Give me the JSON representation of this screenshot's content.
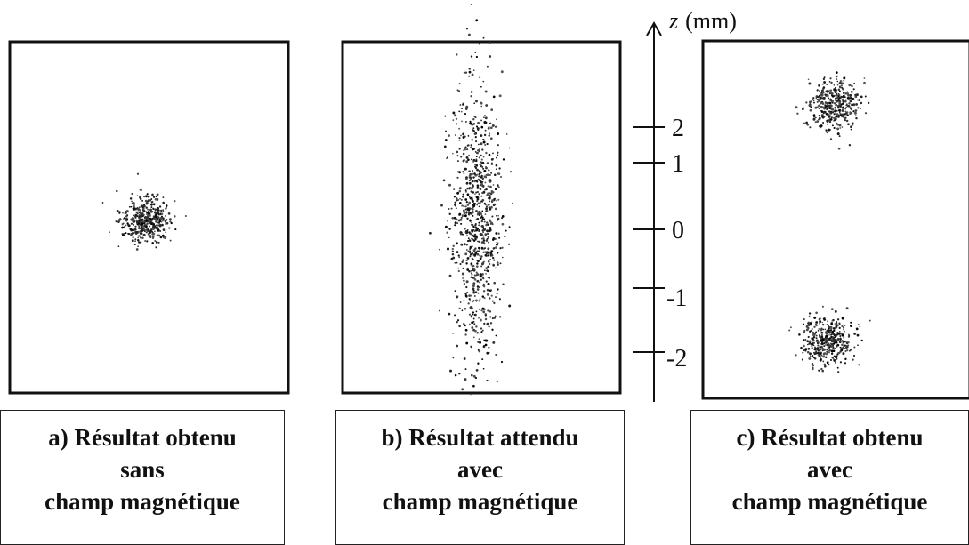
{
  "axis": {
    "variable": "z",
    "unit": "(mm)",
    "ticks": [
      "2",
      "1",
      "0",
      "-1",
      "-2"
    ]
  },
  "panels": [
    {
      "caption_lines": [
        "a) Résultat obtenu",
        "sans",
        "champ magnétique"
      ],
      "clusters": [
        {
          "z_mm": 0.0,
          "spread": "compact"
        }
      ]
    },
    {
      "caption_lines": [
        "b) Résultat attendu",
        "avec",
        "champ magnétique"
      ],
      "clusters": [
        {
          "z_range_mm": [
            -2.3,
            2.5
          ],
          "spread": "vertical-elongated"
        }
      ]
    },
    {
      "caption_lines": [
        "c) Résultat obtenu",
        "avec",
        "champ magnétique"
      ],
      "clusters": [
        {
          "z_mm": 2.0,
          "spread": "compact"
        },
        {
          "z_mm": -1.75,
          "spread": "compact"
        }
      ]
    }
  ]
}
